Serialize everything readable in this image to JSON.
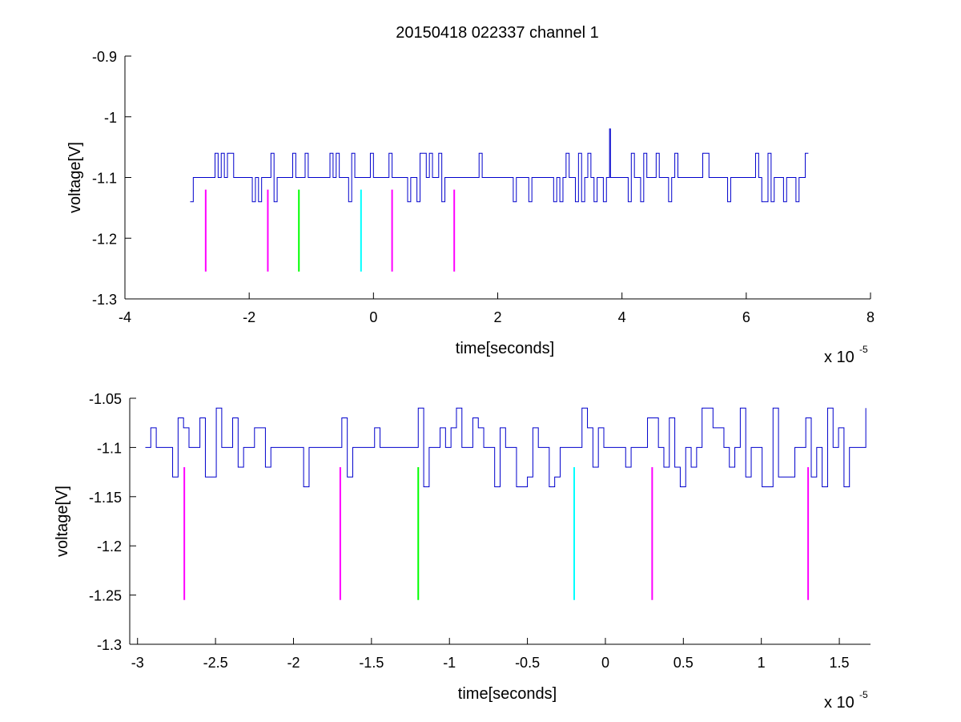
{
  "figure": {
    "title": "20150418 022337 channel 1"
  },
  "colors": {
    "signal": "#0000cc",
    "magenta": "#ff00ff",
    "green": "#00ff00",
    "cyan": "#00ffff",
    "axis": "#000000"
  },
  "chart_data": [
    {
      "type": "line",
      "title": "20150418 022337 channel 1",
      "xlabel": "time[seconds]",
      "ylabel": "voltage[V]",
      "x_exponent_label": "x 10",
      "x_exponent": "-5",
      "x_scale": 1e-05,
      "xlim": [
        -4,
        8
      ],
      "ylim": [
        -1.3,
        -0.9
      ],
      "xticks": [
        -4,
        -2,
        0,
        2,
        4,
        6,
        8
      ],
      "xtick_labels": [
        "-4",
        "-2",
        "0",
        "2",
        "4",
        "6",
        "8"
      ],
      "yticks": [
        -1.3,
        -1.2,
        -1.1,
        -1,
        -0.9
      ],
      "ytick_labels": [
        "-1.3",
        "-1.2",
        "-1.1",
        "-1",
        "-0.9"
      ],
      "grid": false,
      "signal": {
        "x_range": [
          -2.95,
          7.0
        ],
        "baseline": -1.1,
        "levels": [
          -1.14,
          -1.1,
          -1.06
        ],
        "spike": {
          "x": 3.8,
          "y": -1.02
        }
      },
      "markers": [
        {
          "x": -2.7,
          "y_from": -1.12,
          "y_to": -1.255,
          "color": "magenta"
        },
        {
          "x": -1.7,
          "y_from": -1.12,
          "y_to": -1.255,
          "color": "magenta"
        },
        {
          "x": -1.2,
          "y_from": -1.12,
          "y_to": -1.255,
          "color": "green"
        },
        {
          "x": -0.2,
          "y_from": -1.12,
          "y_to": -1.255,
          "color": "cyan"
        },
        {
          "x": 0.3,
          "y_from": -1.12,
          "y_to": -1.255,
          "color": "magenta"
        },
        {
          "x": 1.3,
          "y_from": -1.12,
          "y_to": -1.255,
          "color": "magenta"
        }
      ]
    },
    {
      "type": "line",
      "title": "",
      "xlabel": "time[seconds]",
      "ylabel": "voltage[V]",
      "x_exponent_label": "x 10",
      "x_exponent": "-5",
      "x_scale": 1e-05,
      "xlim": [
        -3.05,
        1.7
      ],
      "ylim": [
        -1.3,
        -1.05
      ],
      "xticks": [
        -3,
        -2.5,
        -2,
        -1.5,
        -1,
        -0.5,
        0,
        0.5,
        1,
        1.5
      ],
      "xtick_labels": [
        "-3",
        "-2.5",
        "-2",
        "-1.5",
        "-1",
        "-0.5",
        "0",
        "0.5",
        "1",
        "1.5"
      ],
      "yticks": [
        -1.3,
        -1.25,
        -1.2,
        -1.15,
        -1.1,
        -1.05
      ],
      "ytick_labels": [
        "-1.3",
        "-1.25",
        "-1.2",
        "-1.15",
        "-1.1",
        "-1.05"
      ],
      "grid": false,
      "signal": {
        "x_range": [
          -2.95,
          1.7
        ],
        "baseline": -1.1,
        "levels": [
          -1.14,
          -1.13,
          -1.12,
          -1.1,
          -1.08,
          -1.07,
          -1.06
        ]
      },
      "markers": [
        {
          "x": -2.7,
          "y_from": -1.12,
          "y_to": -1.255,
          "color": "magenta"
        },
        {
          "x": -1.7,
          "y_from": -1.12,
          "y_to": -1.255,
          "color": "magenta"
        },
        {
          "x": -1.2,
          "y_from": -1.12,
          "y_to": -1.255,
          "color": "green"
        },
        {
          "x": -0.2,
          "y_from": -1.12,
          "y_to": -1.255,
          "color": "cyan"
        },
        {
          "x": 0.3,
          "y_from": -1.12,
          "y_to": -1.255,
          "color": "magenta"
        },
        {
          "x": 1.3,
          "y_from": -1.12,
          "y_to": -1.255,
          "color": "magenta"
        }
      ]
    }
  ]
}
